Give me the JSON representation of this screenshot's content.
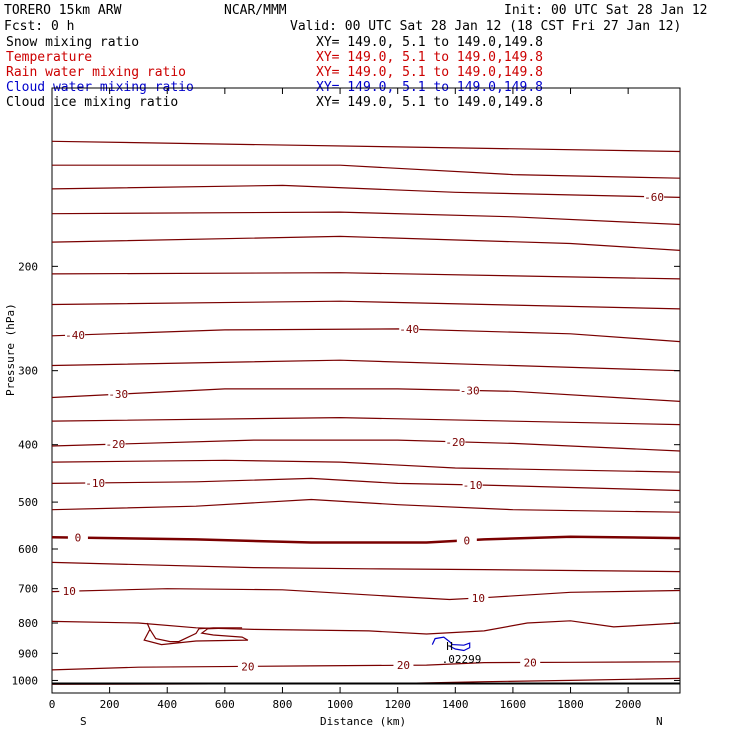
{
  "header": {
    "model": "TORERO  15km ARW",
    "center": "NCAR/MMM",
    "init": "Init: 00 UTC Sat 28 Jan 12",
    "fcst": "Fcst:    0 h",
    "valid": "Valid: 00 UTC Sat 28 Jan 12 (18 CST Fri 27 Jan 12)",
    "fields": [
      {
        "name": "Snow mixing ratio",
        "xy": "",
        "color": "#000000"
      },
      {
        "name": "Temperature",
        "xy": "XY= 149.0,  5.1 to 149.0,149.8",
        "color": "#cc0000"
      },
      {
        "name": "Rain water mixing ratio",
        "xy": "XY= 149.0,  5.1 to 149.0,149.8",
        "color": "#cc0000"
      },
      {
        "name": "Cloud water mixing ratio",
        "xy": "XY= 149.0,  5.1 to 149.0,149.8",
        "color": "#0000cc"
      },
      {
        "name": "Cloud ice mixing ratio",
        "xy": "XY= 149.0,  5.1 to 149.0,149.8",
        "color": "#000000"
      }
    ],
    "xy_black": "XY= 149.0,  5.1 to 149.0,149.8"
  },
  "chart_data": {
    "type": "line",
    "title": "",
    "xlabel": "Distance (km)",
    "ylabel": "Pressure (hPa)",
    "xlim": [
      0,
      2180
    ],
    "ylim": [
      1050,
      100
    ],
    "yscale": "log",
    "x_ticks": [
      0,
      200,
      400,
      600,
      800,
      1000,
      1200,
      1400,
      1600,
      1800,
      2000
    ],
    "y_ticks": [
      200,
      300,
      400,
      500,
      600,
      700,
      800,
      900,
      1000
    ],
    "x_end_labels": {
      "left": "S",
      "right": "N"
    },
    "temperature_color": "#7a0000",
    "cloud_water_color": "#0000cc",
    "surface_color": "#000000",
    "surface_pressure": 1012,
    "isotherms": [
      {
        "value": -70,
        "label": "",
        "points": [
          [
            0,
            123
          ],
          [
            2180,
            128
          ]
        ]
      },
      {
        "value": -65,
        "label": "",
        "points": [
          [
            0,
            135
          ],
          [
            1000,
            135
          ],
          [
            1600,
            140
          ],
          [
            2180,
            142
          ]
        ]
      },
      {
        "value": -60,
        "label": "-60",
        "label_x": 2090,
        "points": [
          [
            0,
            148
          ],
          [
            800,
            146
          ],
          [
            1400,
            150
          ],
          [
            2180,
            153
          ]
        ]
      },
      {
        "value": -55,
        "label": "",
        "points": [
          [
            0,
            163
          ],
          [
            1000,
            162
          ],
          [
            1600,
            165
          ],
          [
            2180,
            170
          ]
        ]
      },
      {
        "value": -50,
        "label": "",
        "points": [
          [
            0,
            182
          ],
          [
            1000,
            178
          ],
          [
            1800,
            183
          ],
          [
            2180,
            188
          ]
        ]
      },
      {
        "value": -45,
        "label": "",
        "points": [
          [
            0,
            206
          ],
          [
            1000,
            205
          ],
          [
            2180,
            210
          ]
        ]
      },
      {
        "value": -45,
        "label": "",
        "points": [
          [
            0,
            232
          ],
          [
            1000,
            229
          ],
          [
            2180,
            236
          ]
        ]
      },
      {
        "value": -40,
        "label": "-40",
        "label_x": 80,
        "label_x2": 1240,
        "points": [
          [
            0,
            262
          ],
          [
            600,
            256
          ],
          [
            1200,
            255
          ],
          [
            1800,
            260
          ],
          [
            2180,
            268
          ]
        ]
      },
      {
        "value": -35,
        "label": "",
        "points": [
          [
            0,
            294
          ],
          [
            1000,
            288
          ],
          [
            2180,
            300
          ]
        ]
      },
      {
        "value": -30,
        "label": "-30",
        "label_x": 230,
        "label_x2": 1450,
        "points": [
          [
            0,
            333
          ],
          [
            600,
            322
          ],
          [
            1200,
            322
          ],
          [
            1600,
            325
          ],
          [
            2180,
            338
          ]
        ]
      },
      {
        "value": -25,
        "label": "",
        "points": [
          [
            0,
            365
          ],
          [
            1000,
            360
          ],
          [
            2180,
            370
          ]
        ]
      },
      {
        "value": -20,
        "label": "-20",
        "label_x": 220,
        "label_x2": 1400,
        "points": [
          [
            0,
            402
          ],
          [
            700,
            393
          ],
          [
            1200,
            393
          ],
          [
            1600,
            398
          ],
          [
            2180,
            410
          ]
        ]
      },
      {
        "value": -15,
        "label": "",
        "points": [
          [
            0,
            428
          ],
          [
            600,
            425
          ],
          [
            1000,
            428
          ],
          [
            1400,
            438
          ],
          [
            2180,
            445
          ]
        ]
      },
      {
        "value": -10,
        "label": "-10",
        "label_x": 150,
        "label_x2": 1460,
        "points": [
          [
            0,
            465
          ],
          [
            500,
            462
          ],
          [
            900,
            456
          ],
          [
            1200,
            465
          ],
          [
            1500,
            468
          ],
          [
            2180,
            478
          ]
        ]
      },
      {
        "value": -5,
        "label": "",
        "points": [
          [
            0,
            515
          ],
          [
            500,
            508
          ],
          [
            900,
            495
          ],
          [
            1200,
            505
          ],
          [
            1600,
            515
          ],
          [
            2180,
            520
          ]
        ]
      },
      {
        "value": 0,
        "label": "0",
        "label_x": 90,
        "label_x2": 1440,
        "bold": true,
        "points": [
          [
            0,
            573
          ],
          [
            500,
            578
          ],
          [
            900,
            585
          ],
          [
            1300,
            585
          ],
          [
            1500,
            578
          ],
          [
            1800,
            572
          ],
          [
            2180,
            575
          ]
        ]
      },
      {
        "value": 5,
        "label": "",
        "points": [
          [
            0,
            632
          ],
          [
            700,
            645
          ],
          [
            1100,
            648
          ],
          [
            1500,
            650
          ],
          [
            2180,
            655
          ]
        ]
      },
      {
        "value": 10,
        "label": "10",
        "label_x": 60,
        "label_x2": 1480,
        "points": [
          [
            0,
            708
          ],
          [
            400,
            700
          ],
          [
            800,
            703
          ],
          [
            1200,
            722
          ],
          [
            1380,
            730
          ],
          [
            1500,
            725
          ],
          [
            1800,
            710
          ],
          [
            2180,
            705
          ]
        ]
      },
      {
        "value": 15,
        "label": "",
        "points": [
          [
            0,
            795
          ],
          [
            300,
            800
          ],
          [
            500,
            815
          ],
          [
            700,
            820
          ],
          [
            1100,
            825
          ],
          [
            1300,
            835
          ],
          [
            1500,
            825
          ],
          [
            1650,
            800
          ],
          [
            1800,
            793
          ],
          [
            1950,
            812
          ],
          [
            2180,
            800
          ]
        ]
      },
      {
        "value": 15,
        "label": "",
        "closed": true,
        "points": [
          [
            330,
            800
          ],
          [
            340,
            820
          ],
          [
            320,
            855
          ],
          [
            380,
            870
          ],
          [
            500,
            858
          ],
          [
            680,
            855
          ],
          [
            660,
            845
          ],
          [
            560,
            838
          ],
          [
            520,
            832
          ],
          [
            540,
            818
          ],
          [
            640,
            815
          ],
          [
            660,
            815
          ],
          [
            560,
            815
          ],
          [
            510,
            818
          ],
          [
            500,
            833
          ],
          [
            440,
            860
          ],
          [
            410,
            860
          ],
          [
            360,
            850
          ],
          [
            340,
            820
          ],
          [
            330,
            800
          ]
        ]
      },
      {
        "value": 20,
        "label": "20",
        "label_x": 680,
        "label_x2": 1220,
        "label_x3": 1660,
        "points": [
          [
            0,
            960
          ],
          [
            300,
            950
          ],
          [
            900,
            945
          ],
          [
            1300,
            942
          ],
          [
            1500,
            933
          ],
          [
            1800,
            932
          ],
          [
            2180,
            930
          ]
        ]
      }
    ],
    "near_surface_isotherm": {
      "value": 25,
      "points": [
        [
          0,
          1015
        ],
        [
          1200,
          1012
        ],
        [
          1500,
          1005
        ],
        [
          1800,
          1000
        ],
        [
          2180,
          992
        ]
      ]
    },
    "cloud_water": {
      "max_label": "H",
      "max_value": ".02299",
      "x": 1380,
      "p": 875,
      "points": [
        [
          1320,
          870
        ],
        [
          1330,
          850
        ],
        [
          1360,
          845
        ],
        [
          1380,
          860
        ],
        [
          1390,
          870
        ],
        [
          1430,
          872
        ],
        [
          1450,
          865
        ],
        [
          1450,
          880
        ],
        [
          1430,
          890
        ],
        [
          1400,
          885
        ],
        [
          1380,
          875
        ]
      ]
    }
  }
}
